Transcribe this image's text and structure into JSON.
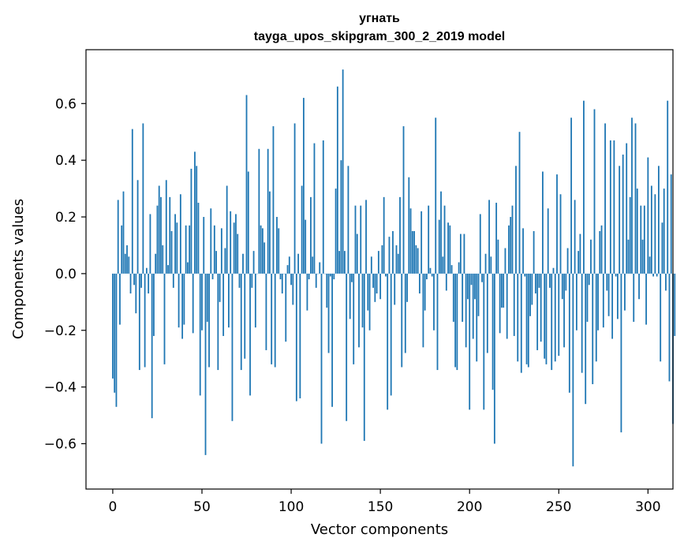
{
  "chart_data": {
    "type": "bar",
    "title": "угнать",
    "subtitle": "tayga_upos_skipgram_300_2_2019 model",
    "xlabel": "Vector components",
    "ylabel": "Components values",
    "xlim": [
      -15,
      314
    ],
    "ylim": [
      -0.76,
      0.79
    ],
    "xticks": [
      0,
      50,
      100,
      150,
      200,
      250,
      300
    ],
    "xtick_labels": [
      "0",
      "50",
      "100",
      "150",
      "200",
      "250",
      "300"
    ],
    "yticks": [
      -0.6,
      -0.4,
      -0.2,
      0.0,
      0.2,
      0.4,
      0.6
    ],
    "ytick_labels": [
      "−0.6",
      "−0.4",
      "−0.2",
      "0.0",
      "0.2",
      "0.4",
      "0.6"
    ],
    "bar_color": "#1f77b4",
    "grid": false,
    "values": [
      -0.37,
      -0.42,
      -0.47,
      0.26,
      -0.18,
      0.17,
      0.29,
      0.07,
      0.1,
      0.06,
      -0.07,
      0.51,
      -0.04,
      -0.14,
      0.33,
      -0.34,
      -0.05,
      0.53,
      -0.33,
      0.02,
      -0.07,
      0.21,
      -0.51,
      -0.22,
      0.07,
      0.24,
      0.31,
      0.27,
      0.1,
      -0.32,
      0.33,
      0.03,
      0.27,
      0.15,
      -0.05,
      0.21,
      0.18,
      -0.19,
      0.28,
      -0.23,
      -0.18,
      0.17,
      0.04,
      0.17,
      0.37,
      -0.21,
      0.43,
      0.38,
      0.25,
      -0.43,
      -0.2,
      0.2,
      -0.64,
      -0.17,
      -0.33,
      0.23,
      -0.02,
      0.17,
      0.08,
      -0.34,
      -0.1,
      0.16,
      -0.22,
      0.09,
      0.31,
      -0.19,
      0.22,
      -0.52,
      0.18,
      0.21,
      0.14,
      -0.05,
      -0.34,
      0.07,
      -0.3,
      0.63,
      0.36,
      -0.43,
      -0.05,
      0.08,
      -0.19,
      0.0,
      0.44,
      0.17,
      0.16,
      0.11,
      -0.27,
      0.44,
      0.29,
      -0.32,
      0.52,
      -0.33,
      0.2,
      0.16,
      -0.02,
      -0.07,
      0.0,
      -0.24,
      0.03,
      0.06,
      -0.04,
      -0.11,
      0.53,
      -0.45,
      0.07,
      -0.44,
      0.31,
      0.62,
      0.19,
      -0.13,
      -0.02,
      0.27,
      0.06,
      0.46,
      -0.05,
      0.0,
      0.04,
      -0.6,
      0.47,
      0.0,
      -0.12,
      -0.28,
      -0.01,
      -0.47,
      -0.02,
      0.3,
      0.66,
      0.08,
      0.4,
      0.72,
      0.08,
      -0.52,
      0.38,
      -0.16,
      -0.03,
      -0.32,
      0.24,
      0.14,
      -0.26,
      0.24,
      -0.19,
      -0.59,
      0.26,
      -0.13,
      -0.2,
      0.06,
      -0.05,
      -0.1,
      -0.07,
      0.08,
      -0.09,
      0.1,
      0.27,
      -0.01,
      -0.48,
      0.13,
      -0.43,
      0.15,
      -0.11,
      0.1,
      0.07,
      0.27,
      -0.33,
      0.52,
      -0.28,
      -0.1,
      0.34,
      0.23,
      0.15,
      0.15,
      0.1,
      0.09,
      -0.07,
      0.22,
      -0.26,
      -0.13,
      -0.02,
      0.24,
      0.02,
      -0.01,
      -0.2,
      0.55,
      -0.34,
      0.19,
      0.29,
      0.06,
      0.24,
      -0.06,
      0.18,
      0.17,
      0.03,
      -0.17,
      -0.33,
      -0.34,
      0.04,
      0.14,
      -0.17,
      0.14,
      -0.26,
      -0.09,
      -0.48,
      -0.04,
      -0.23,
      -0.09,
      -0.31,
      -0.15,
      0.21,
      -0.03,
      -0.48,
      0.07,
      -0.28,
      0.26,
      0.06,
      -0.41,
      -0.6,
      0.25,
      0.12,
      -0.21,
      -0.12,
      -0.12,
      0.09,
      -0.23,
      0.17,
      0.2,
      0.24,
      -0.22,
      0.38,
      -0.31,
      0.5,
      -0.35,
      0.16,
      -0.01,
      -0.32,
      -0.33,
      -0.15,
      -0.11,
      0.15,
      -0.07,
      -0.27,
      -0.05,
      -0.24,
      0.36,
      -0.3,
      -0.32,
      0.23,
      -0.05,
      -0.34,
      0.02,
      -0.31,
      0.35,
      -0.29,
      0.28,
      -0.09,
      -0.26,
      -0.06,
      0.09,
      -0.42,
      0.55,
      -0.68,
      0.26,
      -0.2,
      0.08,
      0.14,
      -0.35,
      0.61,
      -0.46,
      -0.17,
      -0.04,
      0.12,
      -0.39,
      0.58,
      -0.31,
      -0.2,
      0.15,
      0.17,
      -0.19,
      0.53,
      -0.06,
      -0.15,
      0.47,
      -0.23,
      0.47,
      -0.01,
      -0.16,
      0.38,
      -0.56,
      0.42,
      -0.13,
      0.46,
      0.12,
      0.27,
      0.55,
      -0.17,
      0.53,
      0.3,
      -0.09,
      0.24,
      0.12,
      0.24,
      -0.18,
      0.41,
      0.06,
      0.31,
      -0.01,
      0.28,
      -0.01,
      0.38,
      -0.31,
      0.18,
      0.3,
      -0.06,
      0.61,
      -0.38,
      0.35,
      -0.53,
      -0.22
    ]
  }
}
